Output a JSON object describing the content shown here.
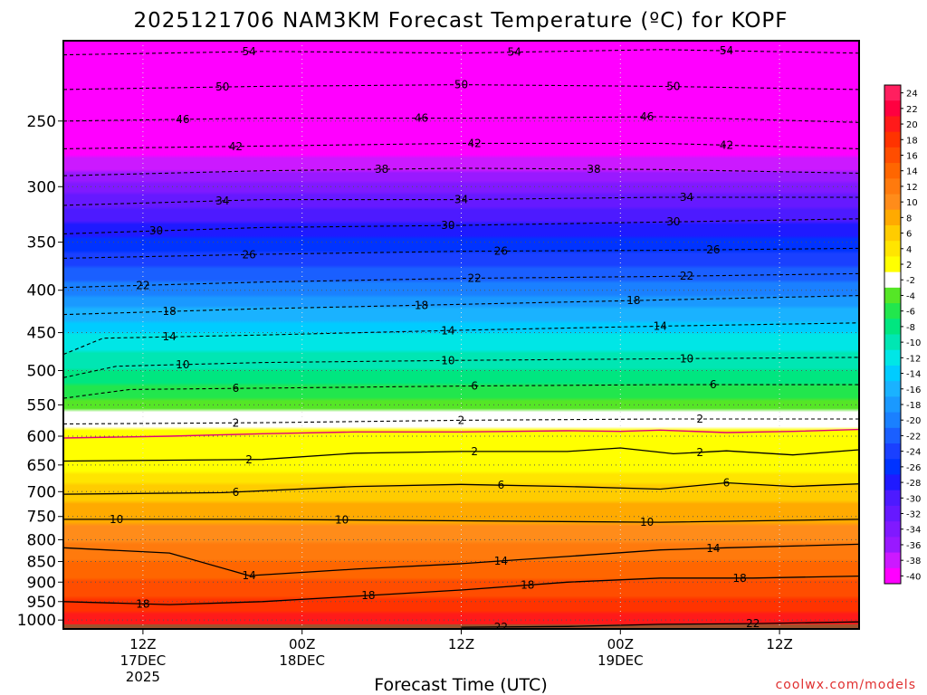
{
  "chart_data": {
    "type": "heatmap",
    "title": "2025121706 NAM3KM Forecast Temperature (ºC) for KOPF",
    "xlabel": "Forecast Time (UTC)",
    "ylabel": "",
    "credit": "coolwx.com/models",
    "x_hours_range": [
      0,
      60
    ],
    "y_pressure_range": [
      200,
      1025
    ],
    "y_ticks": [
      {
        "value": 250,
        "label": "250"
      },
      {
        "value": 300,
        "label": "300"
      },
      {
        "value": 350,
        "label": "350"
      },
      {
        "value": 400,
        "label": "400"
      },
      {
        "value": 450,
        "label": "450"
      },
      {
        "value": 500,
        "label": "500"
      },
      {
        "value": 550,
        "label": "550"
      },
      {
        "value": 600,
        "label": "600"
      },
      {
        "value": 650,
        "label": "650"
      },
      {
        "value": 700,
        "label": "700"
      },
      {
        "value": 750,
        "label": "750"
      },
      {
        "value": 800,
        "label": "800"
      },
      {
        "value": 850,
        "label": "850"
      },
      {
        "value": 900,
        "label": "900"
      },
      {
        "value": 950,
        "label": "950"
      },
      {
        "value": 1000,
        "label": "1000"
      }
    ],
    "x_ticks": [
      {
        "hour": 6,
        "lines": [
          "12Z",
          "17DEC",
          "2025"
        ]
      },
      {
        "hour": 18,
        "lines": [
          "00Z",
          "18DEC"
        ]
      },
      {
        "hour": 30,
        "lines": [
          "12Z"
        ]
      },
      {
        "hour": 42,
        "lines": [
          "00Z",
          "19DEC"
        ]
      },
      {
        "hour": 54,
        "lines": [
          "12Z"
        ]
      }
    ],
    "colorbar": {
      "labels": [
        "24",
        "22",
        "20",
        "18",
        "16",
        "14",
        "12",
        "10",
        "8",
        "6",
        "4",
        "2",
        "-2",
        "-4",
        "-6",
        "-8",
        "-10",
        "-12",
        "-14",
        "-16",
        "-18",
        "-20",
        "-22",
        "-24",
        "-26",
        "-28",
        "-30",
        "-32",
        "-34",
        "-36",
        "-38",
        "-40"
      ],
      "colors": [
        "#ff1f5f",
        "#ff0040",
        "#ff1a1a",
        "#ff3300",
        "#ff4d00",
        "#ff6600",
        "#ff7a0d",
        "#ff8c1a",
        "#ffaa00",
        "#ffcc00",
        "#ffe500",
        "#ffff00",
        "#ffffff",
        "#55e626",
        "#22e64d",
        "#00e680",
        "#00e6b3",
        "#00e6e6",
        "#00ccff",
        "#1ab2ff",
        "#1a99ff",
        "#1a80ff",
        "#1a5fff",
        "#1a40ff",
        "#0033ff",
        "#1f1aff",
        "#4d1aff",
        "#6619ff",
        "#8019ff",
        "#9919ff",
        "#cc19ff",
        "#ff00ff"
      ]
    },
    "temperature_profile": [
      {
        "p": 200,
        "t": -58
      },
      {
        "p": 250,
        "t": -46
      },
      {
        "p": 300,
        "t": -35
      },
      {
        "p": 350,
        "t": -27
      },
      {
        "p": 400,
        "t": -21
      },
      {
        "p": 450,
        "t": -14
      },
      {
        "p": 500,
        "t": -10
      },
      {
        "p": 550,
        "t": -5
      },
      {
        "p": 575,
        "t": -1
      },
      {
        "p": 600,
        "t": 1
      },
      {
        "p": 650,
        "t": 3
      },
      {
        "p": 700,
        "t": 7
      },
      {
        "p": 750,
        "t": 9.5
      },
      {
        "p": 800,
        "t": 11.5
      },
      {
        "p": 850,
        "t": 14
      },
      {
        "p": 900,
        "t": 16.5
      },
      {
        "p": 950,
        "t": 18.5
      },
      {
        "p": 1000,
        "t": 21
      },
      {
        "p": 1025,
        "t": 22.5
      }
    ],
    "contours": [
      {
        "value": -54,
        "label": "54",
        "style": "dashed",
        "pts": [
          [
            0,
            208
          ],
          [
            15,
            206
          ],
          [
            30,
            207
          ],
          [
            45,
            205
          ],
          [
            60,
            207
          ]
        ],
        "labels_at": [
          14,
          34,
          50
        ]
      },
      {
        "value": -50,
        "label": "50",
        "style": "dashed",
        "pts": [
          [
            0,
            229
          ],
          [
            15,
            227
          ],
          [
            30,
            226
          ],
          [
            45,
            227
          ],
          [
            60,
            229
          ]
        ],
        "labels_at": [
          12,
          30,
          46
        ]
      },
      {
        "value": -46,
        "label": "46",
        "style": "dashed",
        "pts": [
          [
            0,
            250
          ],
          [
            15,
            248
          ],
          [
            30,
            248
          ],
          [
            45,
            247
          ],
          [
            60,
            251
          ]
        ],
        "labels_at": [
          9,
          27,
          44
        ]
      },
      {
        "value": -42,
        "label": "42",
        "style": "dashed",
        "pts": [
          [
            0,
            270
          ],
          [
            15,
            268
          ],
          [
            30,
            266
          ],
          [
            45,
            266
          ],
          [
            60,
            270
          ]
        ],
        "labels_at": [
          13,
          31,
          50
        ]
      },
      {
        "value": -38,
        "label": "38",
        "style": "dashed",
        "pts": [
          [
            0,
            291
          ],
          [
            15,
            287
          ],
          [
            30,
            285
          ],
          [
            45,
            286
          ],
          [
            60,
            289
          ]
        ],
        "labels_at": [
          24,
          40
        ]
      },
      {
        "value": -34,
        "label": "34",
        "style": "dashed",
        "pts": [
          [
            0,
            316
          ],
          [
            15,
            311
          ],
          [
            30,
            311
          ],
          [
            45,
            309
          ],
          [
            60,
            309
          ]
        ],
        "labels_at": [
          12,
          30,
          47
        ]
      },
      {
        "value": -30,
        "label": "30",
        "style": "dashed",
        "pts": [
          [
            0,
            342
          ],
          [
            15,
            336
          ],
          [
            30,
            334
          ],
          [
            45,
            331
          ],
          [
            60,
            328
          ]
        ],
        "labels_at": [
          7,
          29,
          46
        ]
      },
      {
        "value": -26,
        "label": "26",
        "style": "dashed",
        "pts": [
          [
            0,
            366
          ],
          [
            15,
            362
          ],
          [
            30,
            359
          ],
          [
            45,
            358
          ],
          [
            60,
            356
          ]
        ],
        "labels_at": [
          14,
          33,
          49
        ]
      },
      {
        "value": -22,
        "label": "22",
        "style": "dashed",
        "pts": [
          [
            0,
            397
          ],
          [
            15,
            391
          ],
          [
            30,
            387
          ],
          [
            45,
            385
          ],
          [
            60,
            382
          ]
        ],
        "labels_at": [
          6,
          31,
          47
        ]
      },
      {
        "value": -18,
        "label": "18",
        "style": "dashed",
        "pts": [
          [
            0,
            428
          ],
          [
            15,
            421
          ],
          [
            30,
            416
          ],
          [
            45,
            411
          ],
          [
            60,
            406
          ]
        ],
        "labels_at": [
          8,
          27,
          43
        ]
      },
      {
        "value": -14,
        "label": "14",
        "style": "dashed",
        "pts": [
          [
            0,
            478
          ],
          [
            3,
            457
          ],
          [
            15,
            453
          ],
          [
            30,
            447
          ],
          [
            45,
            442
          ],
          [
            60,
            438
          ]
        ],
        "labels_at": [
          8,
          29,
          45
        ]
      },
      {
        "value": -10,
        "label": "10",
        "style": "dashed",
        "pts": [
          [
            0,
            510
          ],
          [
            4,
            494
          ],
          [
            15,
            489
          ],
          [
            30,
            486
          ],
          [
            45,
            484
          ],
          [
            60,
            482
          ]
        ],
        "labels_at": [
          9,
          29,
          47
        ]
      },
      {
        "value": -6,
        "label": "6",
        "style": "dashed",
        "pts": [
          [
            0,
            540
          ],
          [
            5,
            527
          ],
          [
            15,
            525
          ],
          [
            30,
            522
          ],
          [
            45,
            520
          ],
          [
            60,
            520
          ]
        ],
        "labels_at": [
          13,
          31,
          49
        ]
      },
      {
        "value": -2,
        "label": "2",
        "style": "dashed",
        "pts": [
          [
            0,
            580
          ],
          [
            15,
            578
          ],
          [
            30,
            574
          ],
          [
            45,
            572
          ],
          [
            60,
            572
          ]
        ],
        "labels_at": [
          13,
          30,
          48
        ]
      },
      {
        "value": 0,
        "label": "",
        "style": "magenta",
        "pts": [
          [
            0,
            603
          ],
          [
            8,
            600
          ],
          [
            15,
            596
          ],
          [
            22,
            593
          ],
          [
            30,
            593
          ],
          [
            38,
            591
          ],
          [
            42,
            592
          ],
          [
            45,
            590
          ],
          [
            50,
            594
          ],
          [
            55,
            592
          ],
          [
            60,
            589
          ]
        ],
        "labels_at": []
      },
      {
        "value": 2,
        "label": "2",
        "style": "solid",
        "pts": [
          [
            0,
            643
          ],
          [
            15,
            640
          ],
          [
            22,
            629
          ],
          [
            30,
            626
          ],
          [
            38,
            626
          ],
          [
            42,
            620
          ],
          [
            46,
            630
          ],
          [
            50,
            625
          ],
          [
            55,
            632
          ],
          [
            60,
            623
          ]
        ],
        "labels_at": [
          14,
          31,
          48
        ]
      },
      {
        "value": 6,
        "label": "6",
        "style": "solid",
        "pts": [
          [
            0,
            705
          ],
          [
            12,
            702
          ],
          [
            22,
            690
          ],
          [
            30,
            686
          ],
          [
            38,
            690
          ],
          [
            45,
            695
          ],
          [
            50,
            683
          ],
          [
            55,
            690
          ],
          [
            60,
            685
          ]
        ],
        "labels_at": [
          13,
          33,
          50
        ]
      },
      {
        "value": 10,
        "label": "10",
        "style": "solid",
        "pts": [
          [
            0,
            756
          ],
          [
            15,
            756
          ],
          [
            30,
            759
          ],
          [
            45,
            762
          ],
          [
            60,
            756
          ]
        ],
        "labels_at": [
          4,
          21,
          44
        ]
      },
      {
        "value": 14,
        "label": "14",
        "style": "solid",
        "pts": [
          [
            0,
            818
          ],
          [
            8,
            830
          ],
          [
            14,
            884
          ],
          [
            22,
            868
          ],
          [
            30,
            855
          ],
          [
            38,
            838
          ],
          [
            45,
            823
          ],
          [
            50,
            818
          ],
          [
            60,
            810
          ]
        ],
        "labels_at": [
          14,
          33,
          49
        ]
      },
      {
        "value": 18,
        "label": "18",
        "style": "solid",
        "pts": [
          [
            0,
            950
          ],
          [
            8,
            958
          ],
          [
            15,
            950
          ],
          [
            22,
            936
          ],
          [
            30,
            920
          ],
          [
            38,
            900
          ],
          [
            45,
            890
          ],
          [
            52,
            890
          ],
          [
            60,
            885
          ]
        ],
        "labels_at": [
          6,
          23,
          35,
          51
        ]
      },
      {
        "value": 22,
        "label": "22",
        "style": "solid",
        "pts": [
          [
            30,
            1020
          ],
          [
            38,
            1018
          ],
          [
            45,
            1012
          ],
          [
            52,
            1010
          ],
          [
            60,
            1005
          ]
        ],
        "labels_at": [
          33,
          52
        ]
      }
    ],
    "grid": "dotted"
  }
}
